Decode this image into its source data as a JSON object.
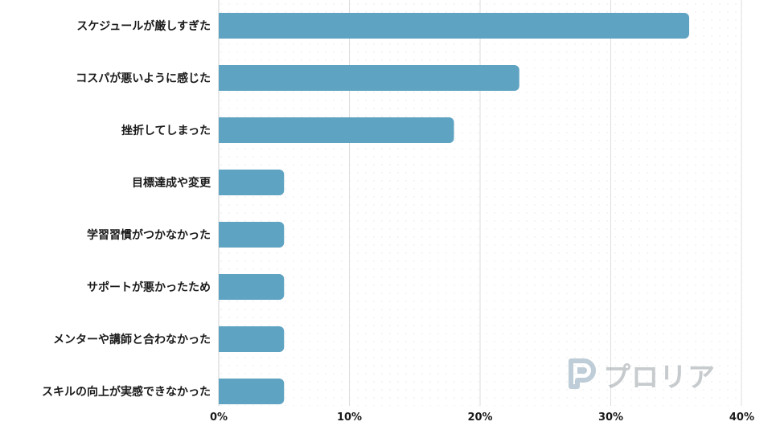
{
  "chart_data": {
    "type": "bar",
    "orientation": "horizontal",
    "categories": [
      "スケジュールが厳しすぎた",
      "コスパが悪いように感じた",
      "挫折してしまった",
      "目標達成や変更",
      "学習習慣がつかなかった",
      "サポートが悪かったため",
      "メンターや講師と合わなかった",
      "スキルの向上が実感できなかった"
    ],
    "values": [
      36,
      23,
      18,
      5,
      5,
      5,
      5,
      5
    ],
    "xlim": [
      0,
      40
    ],
    "xticks": [
      "0%",
      "10%",
      "20%",
      "30%",
      "40%"
    ],
    "title": "",
    "xlabel": "",
    "ylabel": "",
    "grid": "vertical",
    "bar_color": "#5ea3c2",
    "grid_color": "#dcdcdc"
  },
  "watermark": {
    "text": "プロリア",
    "logo_icon": "p-logo-icon",
    "color": "#9aa1a6"
  }
}
